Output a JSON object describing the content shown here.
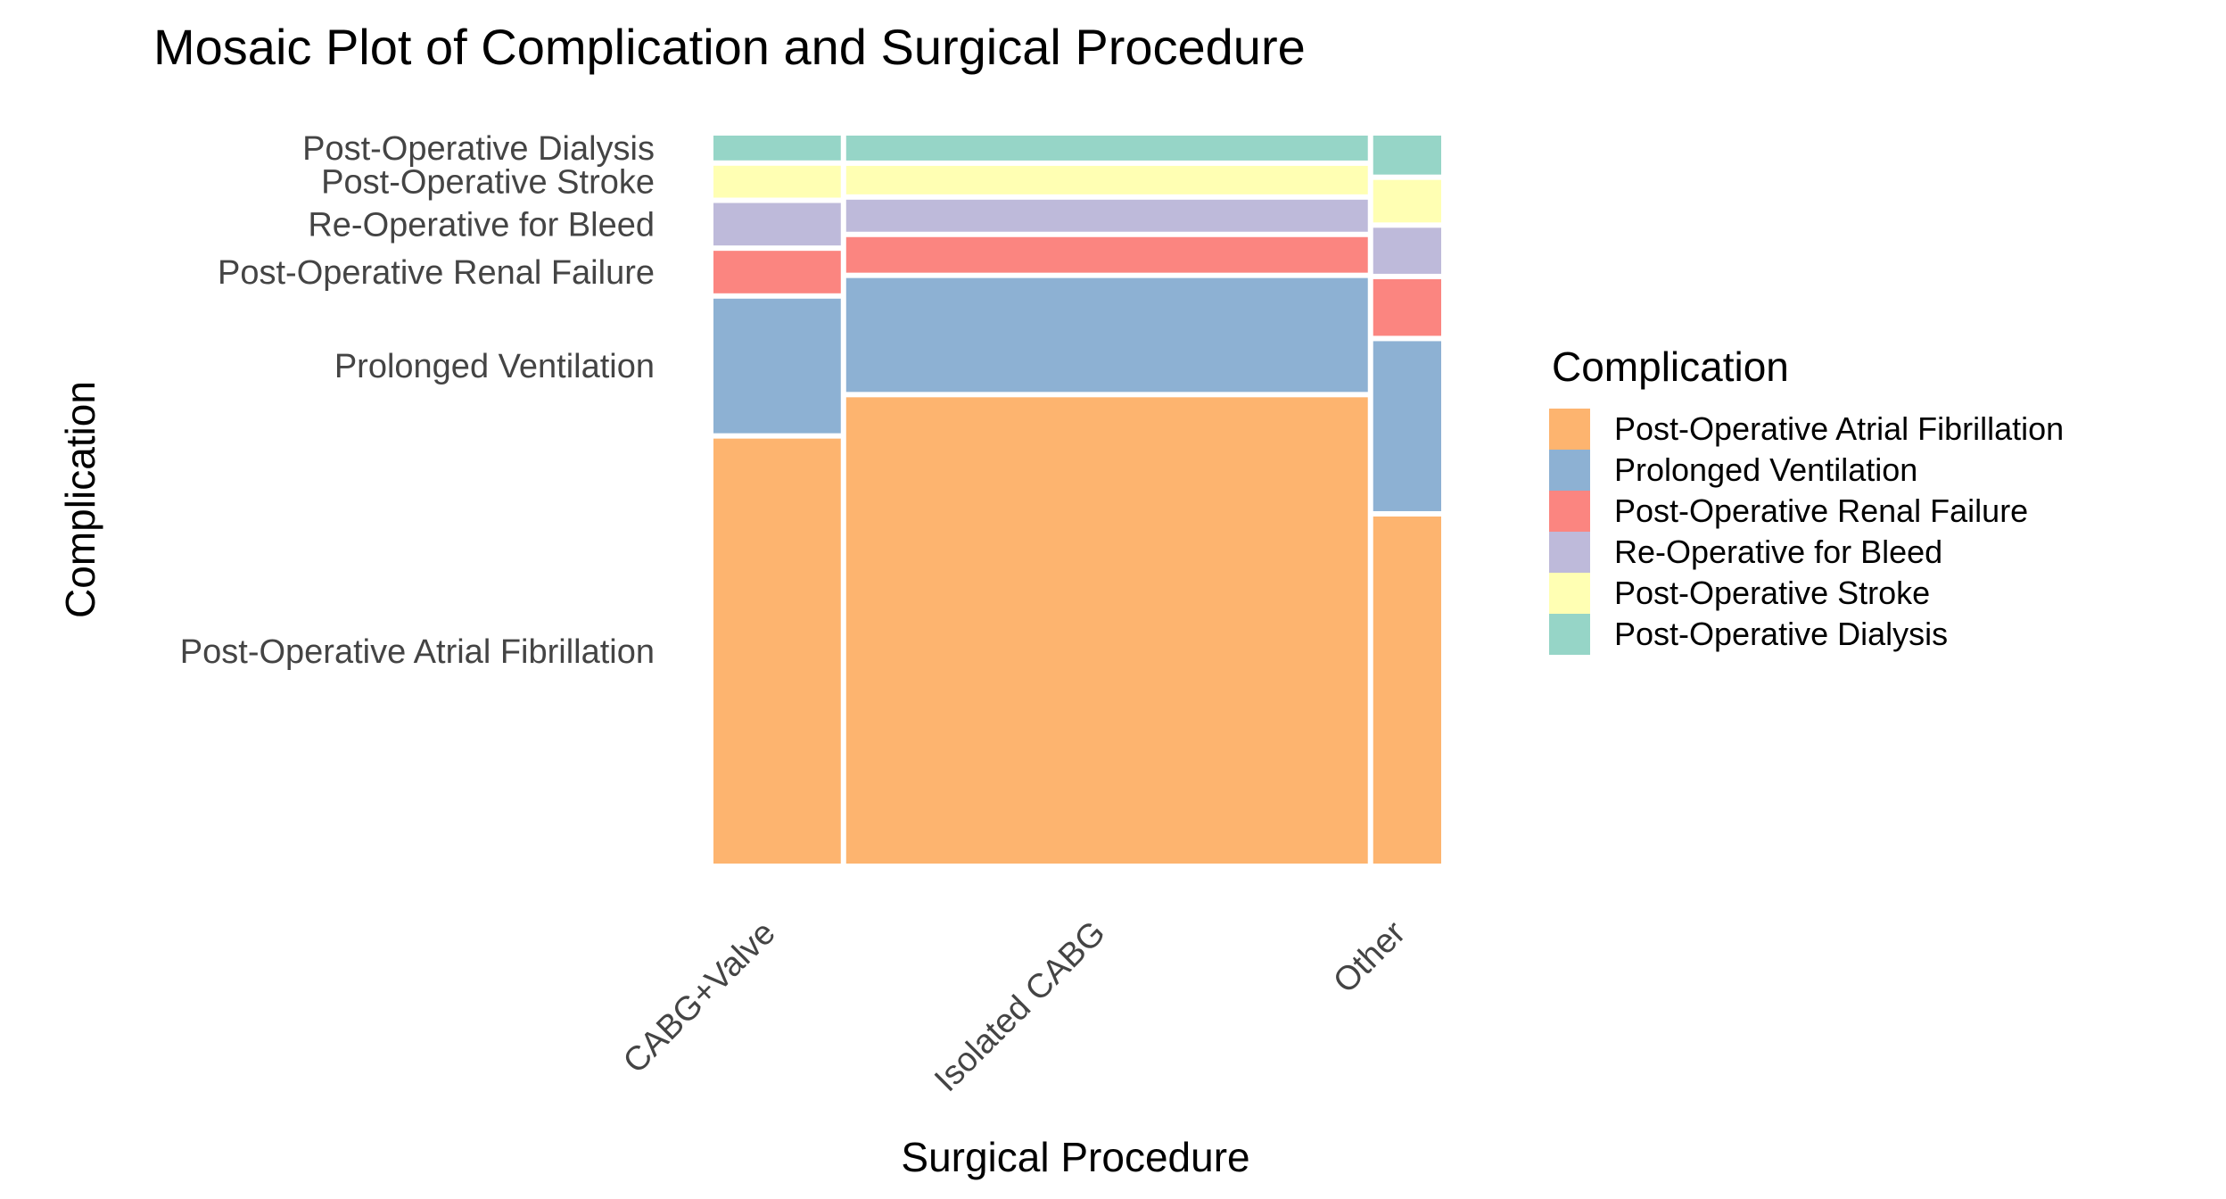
{
  "chart_data": {
    "type": "mosaic",
    "title": "Mosaic Plot of Complication and Surgical Procedure",
    "xlabel": "Surgical Procedure",
    "ylabel": "Complication",
    "x_categories": [
      "CABG+Valve",
      "Isolated CABG",
      "Other"
    ],
    "x_proportions": [
      0.176,
      0.721,
      0.094
    ],
    "y_categories": [
      "Post-Operative Atrial Fibrillation",
      "Prolonged Ventilation",
      "Post-Operative Renal Failure",
      "Re-Operative for Bleed",
      "Post-Operative Stroke",
      "Post-Operative Dialysis"
    ],
    "series": [
      {
        "name": "Post-Operative Atrial Fibrillation",
        "values": [
          0.6,
          0.655,
          0.49
        ]
      },
      {
        "name": "Prolonged Ventilation",
        "values": [
          0.19,
          0.16,
          0.24
        ]
      },
      {
        "name": "Post-Operative Renal Failure",
        "values": [
          0.06,
          0.05,
          0.08
        ]
      },
      {
        "name": "Re-Operative for Bleed",
        "values": [
          0.06,
          0.045,
          0.065
        ]
      },
      {
        "name": "Post-Operative Stroke",
        "values": [
          0.045,
          0.04,
          0.06
        ]
      },
      {
        "name": "Post-Operative Dialysis",
        "values": [
          0.035,
          0.035,
          0.055
        ]
      }
    ],
    "legend": {
      "title": "Complication",
      "position": "right"
    },
    "colors": [
      "#FDB46F",
      "#8DB1D3",
      "#FB8580",
      "#BEBADA",
      "#FFFFB3",
      "#96D5C7"
    ],
    "grid": false
  }
}
